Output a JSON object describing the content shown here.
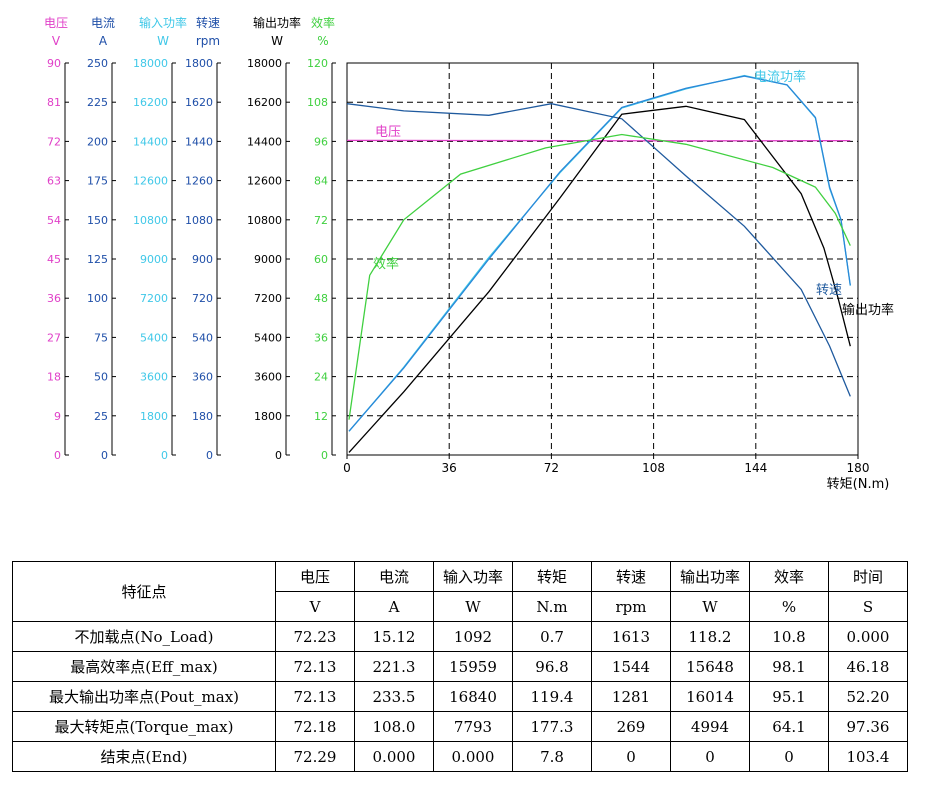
{
  "chart_data": {
    "type": "line",
    "xlabel": "转矩(N.m)",
    "x_ticks": [
      "0",
      "36",
      "72",
      "108",
      "144",
      "180"
    ],
    "xlim": [
      0,
      180
    ],
    "grid": true,
    "axes": [
      {
        "name": "电压",
        "unit": "V",
        "color": "#e040c8",
        "ticks": [
          "90",
          "81",
          "72",
          "63",
          "54",
          "45",
          "36",
          "27",
          "18",
          "9",
          "0"
        ]
      },
      {
        "name": "电流",
        "unit": "A",
        "color": "#1f4fa8",
        "ticks": [
          "250",
          "225",
          "200",
          "175",
          "150",
          "125",
          "100",
          "75",
          "50",
          "25",
          "0"
        ]
      },
      {
        "name": "输入功率",
        "unit": "W",
        "color": "#40c8e8",
        "ticks": [
          "18000",
          "16200",
          "14400",
          "12600",
          "10800",
          "9000",
          "7200",
          "5400",
          "3600",
          "1800",
          "0"
        ]
      },
      {
        "name": "转速",
        "unit": "rpm",
        "color": "#1f4fa8",
        "ticks": [
          "1800",
          "1620",
          "1440",
          "1260",
          "1080",
          "900",
          "720",
          "540",
          "360",
          "180",
          "0"
        ]
      },
      {
        "name": "输出功率",
        "unit": "W",
        "color": "#000000",
        "ticks": [
          "18000",
          "16200",
          "14400",
          "12600",
          "10800",
          "9000",
          "7200",
          "5400",
          "3600",
          "1800",
          "0"
        ]
      },
      {
        "name": "效率",
        "unit": "%",
        "color": "#40d040",
        "ticks": [
          "120",
          "108",
          "96",
          "84",
          "72",
          "60",
          "48",
          "36",
          "24",
          "12",
          "0"
        ]
      }
    ],
    "series": [
      {
        "name": "电压",
        "label": "电压",
        "color": "#e040c8",
        "ymax": 90,
        "x": [
          0,
          40,
          80,
          120,
          160,
          177.3
        ],
        "y": [
          72.23,
          72.2,
          72.15,
          72.13,
          72.15,
          72.18
        ]
      },
      {
        "name": "电流",
        "label": "电流功率",
        "color": "#40c8e8",
        "ymax": 250,
        "x": [
          0.7,
          20,
          50,
          75,
          96.8,
          119.4,
          140,
          155,
          165,
          170,
          174,
          177.3
        ],
        "y": [
          15.12,
          56,
          126,
          180,
          221.3,
          233.5,
          242,
          236,
          215,
          170,
          150,
          108.0
        ]
      },
      {
        "name": "输入功率",
        "label": "",
        "color": "#2a88d8",
        "ymax": 18000,
        "x": [
          0.7,
          20,
          50,
          75,
          96.8,
          119.4,
          140,
          155,
          165,
          170,
          174,
          177.3
        ],
        "y": [
          1092,
          4000,
          9000,
          13000,
          15959,
          16840,
          17400,
          17000,
          15500,
          12300,
          10800,
          7793
        ]
      },
      {
        "name": "转速",
        "label": "转速",
        "color": "#1f5a9e",
        "ymax": 1800,
        "x": [
          0,
          20,
          50,
          72,
          96.8,
          119.4,
          140,
          160,
          170,
          177.3
        ],
        "y": [
          1613,
          1580,
          1560,
          1613,
          1544,
          1281,
          1050,
          760,
          500,
          269
        ]
      },
      {
        "name": "输出功率",
        "label": "输出功率",
        "color": "#000000",
        "ymax": 18000,
        "x": [
          0.7,
          20,
          50,
          75,
          96.8,
          119.4,
          140,
          160,
          168,
          173,
          177.3
        ],
        "y": [
          118.2,
          2900,
          7500,
          11800,
          15648,
          16014,
          15400,
          12000,
          9500,
          7200,
          4994
        ]
      },
      {
        "name": "效率",
        "label": "效率",
        "color": "#40d040",
        "ymax": 120,
        "x": [
          0.7,
          8,
          20,
          40,
          70,
          96.8,
          119.4,
          150,
          165,
          172,
          177.3
        ],
        "y": [
          10.8,
          55,
          72,
          86,
          94,
          98.1,
          95.1,
          88,
          82,
          74,
          64.1
        ]
      }
    ]
  },
  "table": {
    "header_label": "特征点",
    "headers": [
      "电压",
      "电流",
      "输入功率",
      "转矩",
      "转速",
      "输出功率",
      "效率",
      "时间"
    ],
    "units": [
      "V",
      "A",
      "W",
      "N.m",
      "rpm",
      "W",
      "%",
      "S"
    ],
    "rows": [
      {
        "label": "不加载点(No_Load)",
        "cells": [
          "72.23",
          "15.12",
          "1092",
          "0.7",
          "1613",
          "118.2",
          "10.8",
          "0.000"
        ]
      },
      {
        "label": "最高效率点(Eff_max)",
        "cells": [
          "72.13",
          "221.3",
          "15959",
          "96.8",
          "1544",
          "15648",
          "98.1",
          "46.18"
        ]
      },
      {
        "label": "最大输出功率点(Pout_max)",
        "cells": [
          "72.13",
          "233.5",
          "16840",
          "119.4",
          "1281",
          "16014",
          "95.1",
          "52.20"
        ]
      },
      {
        "label": "最大转矩点(Torque_max)",
        "cells": [
          "72.18",
          "108.0",
          "7793",
          "177.3",
          "269",
          "4994",
          "64.1",
          "97.36"
        ]
      },
      {
        "label": "结束点(End)",
        "cells": [
          "72.29",
          "0.000",
          "0.000",
          "7.8",
          "0",
          "0",
          "0",
          "103.4"
        ]
      }
    ]
  }
}
